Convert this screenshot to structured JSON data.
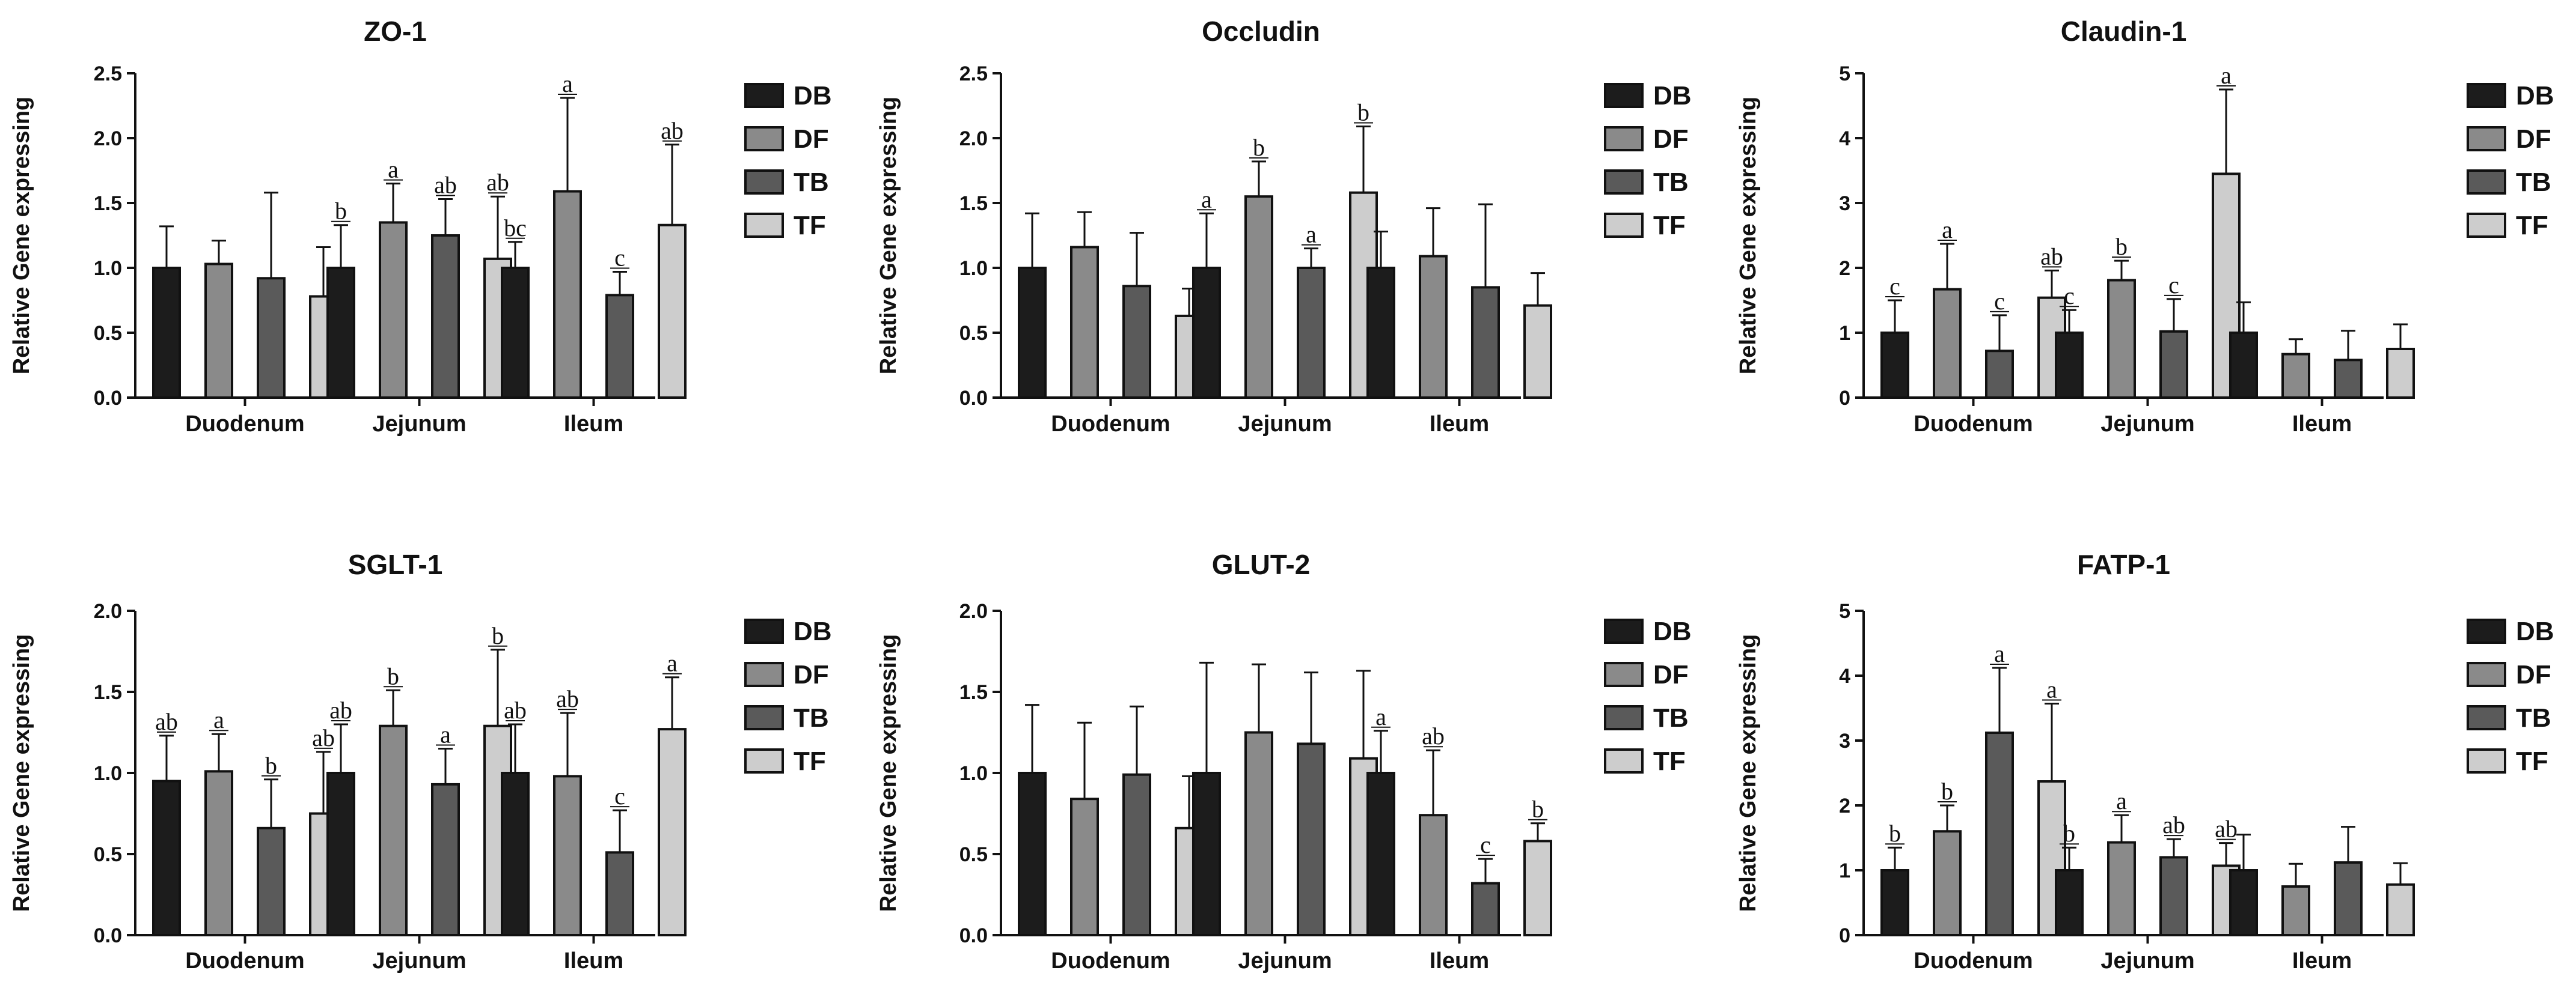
{
  "groups": [
    "DB",
    "DF",
    "TB",
    "TF"
  ],
  "colors": {
    "DB": "#1c1c1c",
    "DF": "#8a8a8a",
    "TB": "#5a5a5a",
    "TF": "#cdcdcd"
  },
  "chart_data": [
    {
      "type": "bar",
      "title": "ZO-1",
      "xlabel": "",
      "ylabel": "Relative Gene expressing",
      "ylim": [
        0,
        2.5
      ],
      "yticks": [
        "0.0",
        "0.5",
        "1.0",
        "1.5",
        "2.0",
        "2.5"
      ],
      "categories": [
        "Duodenum",
        "Jejunum",
        "Ileum"
      ],
      "series": [
        {
          "name": "DB",
          "values": [
            1.0,
            1.0,
            1.0
          ],
          "errors": [
            0.32,
            0.33,
            0.2
          ],
          "letters": [
            "",
            "b",
            "bc"
          ]
        },
        {
          "name": "DF",
          "values": [
            1.03,
            1.35,
            1.59
          ],
          "errors": [
            0.18,
            0.3,
            0.72
          ],
          "letters": [
            "",
            "a",
            "a"
          ]
        },
        {
          "name": "TB",
          "values": [
            0.92,
            1.25,
            0.79
          ],
          "errors": [
            0.66,
            0.28,
            0.18
          ],
          "letters": [
            "",
            "ab",
            "c"
          ]
        },
        {
          "name": "TF",
          "values": [
            0.78,
            1.07,
            1.33
          ],
          "errors": [
            0.38,
            0.48,
            0.62
          ],
          "letters": [
            "",
            "ab",
            "ab"
          ]
        }
      ],
      "legend": "right"
    },
    {
      "type": "bar",
      "title": "Occludin",
      "xlabel": "",
      "ylabel": "Relative Gene expressing",
      "ylim": [
        0,
        2.5
      ],
      "yticks": [
        "0.0",
        "0.5",
        "1.0",
        "1.5",
        "2.0",
        "2.5"
      ],
      "categories": [
        "Duodenum",
        "Jejunum",
        "Ileum"
      ],
      "series": [
        {
          "name": "DB",
          "values": [
            1.0,
            1.0,
            1.0
          ],
          "errors": [
            0.42,
            0.42,
            0.28
          ],
          "letters": [
            "",
            "a",
            ""
          ]
        },
        {
          "name": "DF",
          "values": [
            1.16,
            1.55,
            1.09
          ],
          "errors": [
            0.27,
            0.27,
            0.37
          ],
          "letters": [
            "",
            "b",
            ""
          ]
        },
        {
          "name": "TB",
          "values": [
            0.86,
            1.0,
            0.85
          ],
          "errors": [
            0.41,
            0.15,
            0.64
          ],
          "letters": [
            "",
            "a",
            ""
          ]
        },
        {
          "name": "TF",
          "values": [
            0.63,
            1.58,
            0.71
          ],
          "errors": [
            0.21,
            0.51,
            0.25
          ],
          "letters": [
            "",
            "b",
            ""
          ]
        }
      ],
      "legend": "right"
    },
    {
      "type": "bar",
      "title": "Claudin-1",
      "xlabel": "",
      "ylabel": "Relative Gene expressing",
      "ylim": [
        0,
        5
      ],
      "yticks": [
        "0",
        "1",
        "2",
        "3",
        "4",
        "5"
      ],
      "categories": [
        "Duodenum",
        "Jejunum",
        "Ileum"
      ],
      "series": [
        {
          "name": "DB",
          "values": [
            1.0,
            1.0,
            1.0
          ],
          "errors": [
            0.5,
            0.35,
            0.47
          ],
          "letters": [
            "c",
            "c",
            ""
          ]
        },
        {
          "name": "DF",
          "values": [
            1.67,
            1.81,
            0.67
          ],
          "errors": [
            0.7,
            0.3,
            0.23
          ],
          "letters": [
            "a",
            "b",
            ""
          ]
        },
        {
          "name": "TB",
          "values": [
            0.72,
            1.02,
            0.58
          ],
          "errors": [
            0.55,
            0.5,
            0.45
          ],
          "letters": [
            "c",
            "c",
            ""
          ]
        },
        {
          "name": "TF",
          "values": [
            1.54,
            3.45,
            0.75
          ],
          "errors": [
            0.42,
            1.3,
            0.38
          ],
          "letters": [
            "ab",
            "a",
            ""
          ]
        }
      ],
      "legend": "right"
    },
    {
      "type": "bar",
      "title": "SGLT-1",
      "xlabel": "",
      "ylabel": "Relative Gene expressing",
      "ylim": [
        0,
        2.0
      ],
      "yticks": [
        "0.0",
        "0.5",
        "1.0",
        "1.5",
        "2.0"
      ],
      "categories": [
        "Duodenum",
        "Jejunum",
        "Ileum"
      ],
      "series": [
        {
          "name": "DB",
          "values": [
            0.95,
            1.0,
            1.0
          ],
          "errors": [
            0.28,
            0.3,
            0.3
          ],
          "letters": [
            "ab",
            "ab",
            "ab"
          ]
        },
        {
          "name": "DF",
          "values": [
            1.01,
            1.29,
            0.98
          ],
          "errors": [
            0.23,
            0.22,
            0.39
          ],
          "letters": [
            "a",
            "b",
            "ab"
          ]
        },
        {
          "name": "TB",
          "values": [
            0.66,
            0.93,
            0.51
          ],
          "errors": [
            0.3,
            0.22,
            0.26
          ],
          "letters": [
            "b",
            "a",
            "c"
          ]
        },
        {
          "name": "TF",
          "values": [
            0.75,
            1.29,
            1.27
          ],
          "errors": [
            0.38,
            0.47,
            0.32
          ],
          "letters": [
            "ab",
            "b",
            "a"
          ]
        }
      ],
      "legend": "right"
    },
    {
      "type": "bar",
      "title": "GLUT-2",
      "xlabel": "",
      "ylabel": "Relative Gene expressing",
      "ylim": [
        0,
        2.0
      ],
      "yticks": [
        "0.0",
        "0.5",
        "1.0",
        "1.5",
        "2.0"
      ],
      "categories": [
        "Duodenum",
        "Jejunum",
        "Ileum"
      ],
      "series": [
        {
          "name": "DB",
          "values": [
            1.0,
            1.0,
            1.0
          ],
          "errors": [
            0.42,
            0.68,
            0.26
          ],
          "letters": [
            "",
            "",
            "a"
          ]
        },
        {
          "name": "DF",
          "values": [
            0.84,
            1.25,
            0.74
          ],
          "errors": [
            0.47,
            0.42,
            0.4
          ],
          "letters": [
            "",
            "",
            "ab"
          ]
        },
        {
          "name": "TB",
          "values": [
            0.99,
            1.18,
            0.32
          ],
          "errors": [
            0.42,
            0.44,
            0.15
          ],
          "letters": [
            "",
            "",
            "c"
          ]
        },
        {
          "name": "TF",
          "values": [
            0.66,
            1.09,
            0.58
          ],
          "errors": [
            0.32,
            0.54,
            0.11
          ],
          "letters": [
            "",
            "",
            "b"
          ]
        }
      ],
      "legend": "right"
    },
    {
      "type": "bar",
      "title": "FATP-1",
      "xlabel": "",
      "ylabel": "Relative Gene expressing",
      "ylim": [
        0,
        5
      ],
      "yticks": [
        "0",
        "1",
        "2",
        "3",
        "4",
        "5"
      ],
      "categories": [
        "Duodenum",
        "Jejunum",
        "Ileum"
      ],
      "series": [
        {
          "name": "DB",
          "values": [
            1.0,
            1.0,
            1.0
          ],
          "errors": [
            0.35,
            0.35,
            0.55
          ],
          "letters": [
            "b",
            "b",
            ""
          ]
        },
        {
          "name": "DF",
          "values": [
            1.6,
            1.43,
            0.75
          ],
          "errors": [
            0.4,
            0.42,
            0.35
          ],
          "letters": [
            "b",
            "a",
            ""
          ]
        },
        {
          "name": "TB",
          "values": [
            3.12,
            1.2,
            1.12
          ],
          "errors": [
            1.0,
            0.28,
            0.55
          ],
          "letters": [
            "a",
            "ab",
            ""
          ]
        },
        {
          "name": "TF",
          "values": [
            2.37,
            1.07,
            0.78
          ],
          "errors": [
            1.2,
            0.35,
            0.33
          ],
          "letters": [
            "a",
            "ab",
            ""
          ]
        }
      ],
      "legend": "right"
    }
  ]
}
